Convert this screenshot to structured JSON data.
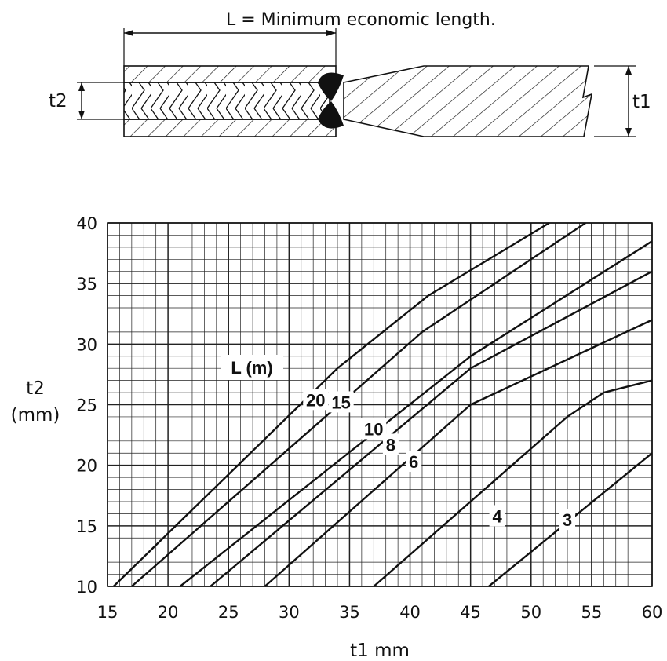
{
  "diagram": {
    "caption": "L = Minimum economic length.",
    "t2_label": "t2",
    "t1_label": "t1"
  },
  "chart_data": {
    "type": "line",
    "title": "",
    "xlabel": "t1 mm",
    "ylabel_line1": "t2",
    "ylabel_line2": "(mm)",
    "xlim": [
      15,
      60
    ],
    "ylim": [
      10,
      40
    ],
    "xticks": [
      15,
      20,
      25,
      30,
      35,
      40,
      45,
      50,
      55,
      60
    ],
    "yticks": [
      10,
      15,
      20,
      25,
      30,
      35,
      40
    ],
    "grid": true,
    "grid_minor_step_x": 1,
    "grid_minor_step_y": 1,
    "legend_title": "L (m)",
    "series": [
      {
        "name": "20",
        "points": [
          [
            15.5,
            10
          ],
          [
            34,
            28
          ],
          [
            41.5,
            34
          ],
          [
            51.5,
            40
          ]
        ],
        "label_at": [
          32.2,
          25.4
        ]
      },
      {
        "name": "15",
        "points": [
          [
            17,
            10
          ],
          [
            41,
            31
          ],
          [
            54.5,
            40
          ]
        ],
        "label_at": [
          34.3,
          25.2
        ]
      },
      {
        "name": "10",
        "points": [
          [
            21,
            10
          ],
          [
            45,
            29
          ],
          [
            60,
            38.5
          ]
        ],
        "label_at": [
          37,
          23
        ]
      },
      {
        "name": "8",
        "points": [
          [
            23.5,
            10
          ],
          [
            45,
            28
          ],
          [
            60,
            36
          ]
        ],
        "label_at": [
          38.4,
          21.7
        ]
      },
      {
        "name": "6",
        "points": [
          [
            28,
            10
          ],
          [
            45,
            25
          ],
          [
            60,
            32
          ]
        ],
        "label_at": [
          40.3,
          20.3
        ]
      },
      {
        "name": "4",
        "points": [
          [
            37,
            10
          ],
          [
            53,
            24
          ],
          [
            56,
            26
          ],
          [
            60,
            27
          ]
        ],
        "label_at": [
          47.2,
          15.8
        ]
      },
      {
        "name": "3",
        "points": [
          [
            46.5,
            10
          ],
          [
            60,
            21
          ]
        ],
        "label_at": [
          53,
          15.5
        ]
      }
    ]
  }
}
